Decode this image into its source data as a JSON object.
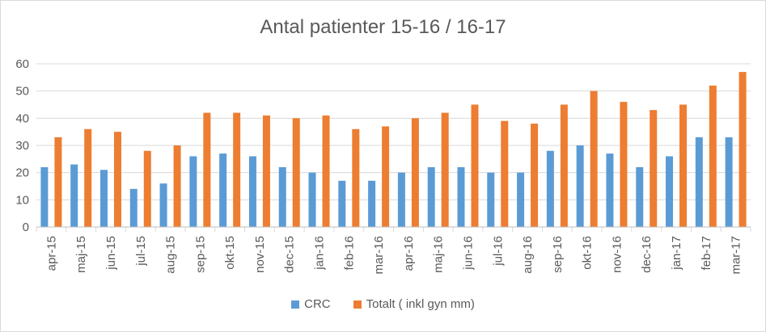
{
  "chart_data": {
    "type": "bar",
    "title": "Antal patienter 15-16 / 16-17",
    "xlabel": "",
    "ylabel": "",
    "ylim": [
      0,
      60
    ],
    "yticks": [
      "0",
      "10",
      "20",
      "30",
      "40",
      "50",
      "60"
    ],
    "grid": true,
    "legend_position": "bottom",
    "categories": [
      "apr-15",
      "maj-15",
      "jun-15",
      "jul-15",
      "aug-15",
      "sep-15",
      "okt-15",
      "nov-15",
      "dec-15",
      "jan-16",
      "feb-16",
      "mar-16",
      "apr-16",
      "maj-16",
      "jun-16",
      "jul-16",
      "aug-16",
      "sep-16",
      "okt-16",
      "nov-16",
      "dec-16",
      "jan-17",
      "feb-17",
      "mar-17"
    ],
    "series": [
      {
        "name": "CRC",
        "color": "#5b9bd5",
        "values": [
          22,
          23,
          21,
          14,
          16,
          26,
          27,
          26,
          22,
          20,
          17,
          17,
          20,
          22,
          22,
          20,
          20,
          28,
          30,
          27,
          22,
          26,
          33,
          33
        ]
      },
      {
        "name": "Totalt ( inkl gyn mm)",
        "color": "#ed7d31",
        "values": [
          33,
          36,
          35,
          28,
          30,
          42,
          42,
          41,
          40,
          41,
          36,
          37,
          40,
          42,
          45,
          39,
          38,
          45,
          50,
          46,
          43,
          45,
          52,
          57
        ]
      }
    ]
  }
}
